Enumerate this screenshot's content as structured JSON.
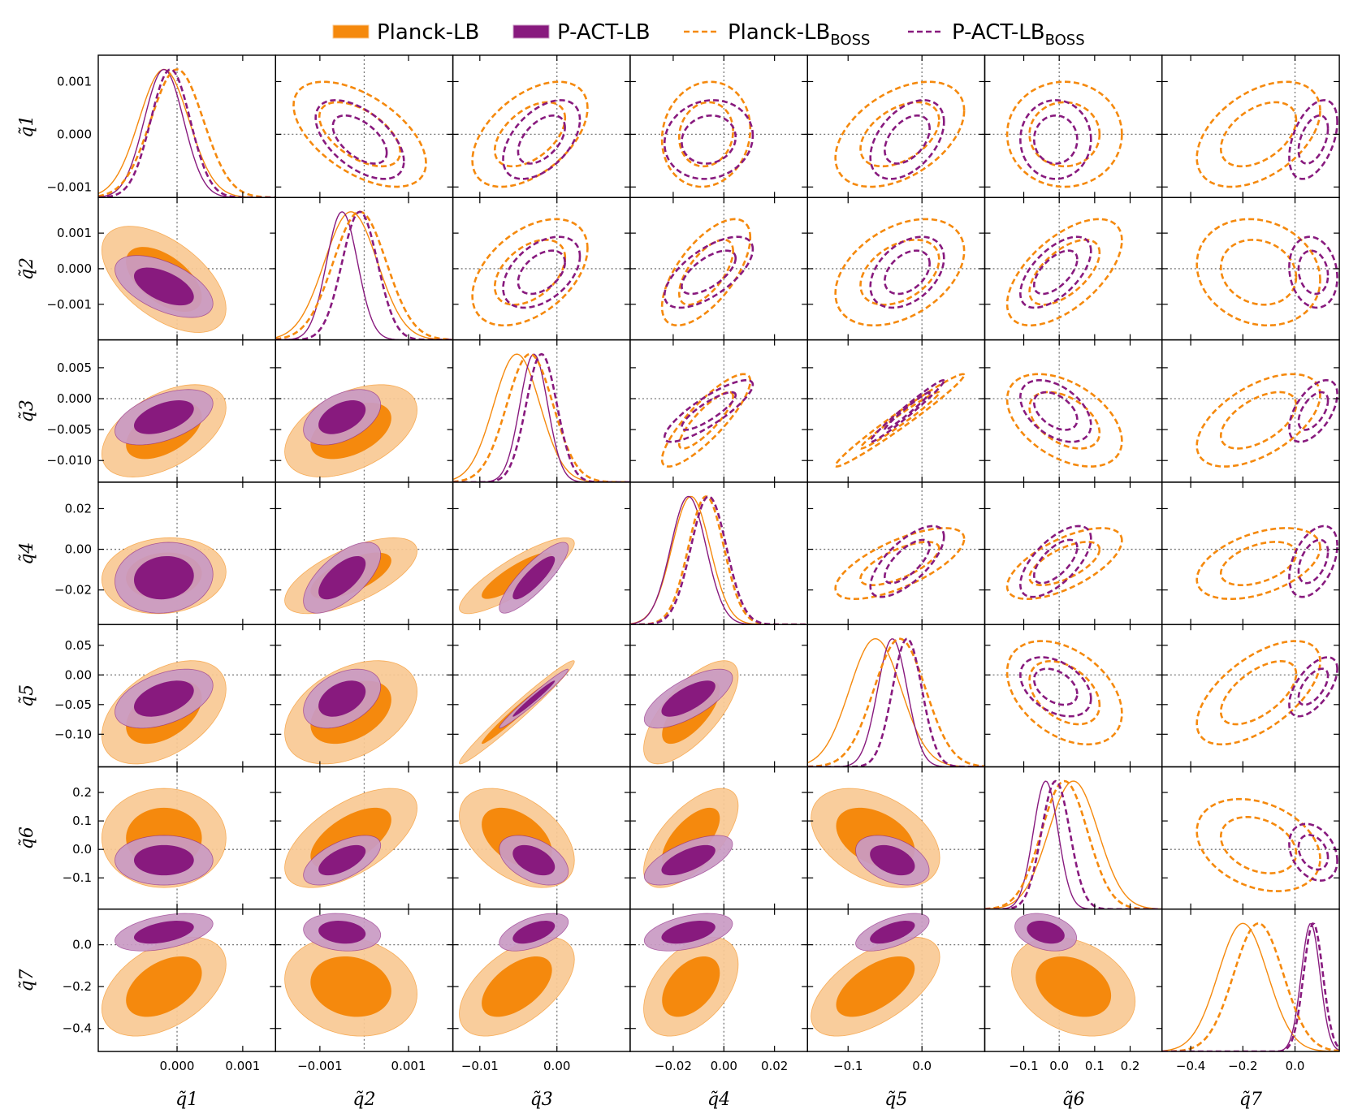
{
  "chart_data": {
    "type": "triangle-corner-plot",
    "params": [
      "q1",
      "q2",
      "q3",
      "q4",
      "q5",
      "q6",
      "q7"
    ],
    "param_labels": [
      "q̃1",
      "q̃2",
      "q̃3",
      "q̃4",
      "q̃5",
      "q̃6",
      "q̃7"
    ],
    "ranges": [
      [
        -0.0012,
        0.0015
      ],
      [
        -0.002,
        0.002
      ],
      [
        -0.0135,
        0.0095
      ],
      [
        -0.037,
        0.033
      ],
      [
        -0.155,
        0.085
      ],
      [
        -0.21,
        0.29
      ],
      [
        -0.51,
        0.17
      ]
    ],
    "y_ticks": [
      [
        {
          "v": -0.001,
          "label": "−0.001"
        },
        {
          "v": 0,
          "label": "0.000"
        },
        {
          "v": 0.001,
          "label": "0.001"
        }
      ],
      [
        {
          "v": -0.001,
          "label": "−0.001"
        },
        {
          "v": 0,
          "label": "0.000"
        },
        {
          "v": 0.001,
          "label": "0.001"
        }
      ],
      [
        {
          "v": -0.01,
          "label": "−0.010"
        },
        {
          "v": -0.005,
          "label": "−0.005"
        },
        {
          "v": 0,
          "label": "0.000"
        },
        {
          "v": 0.005,
          "label": "0.005"
        }
      ],
      [
        {
          "v": -0.02,
          "label": "−0.02"
        },
        {
          "v": 0,
          "label": "0.00"
        },
        {
          "v": 0.02,
          "label": "0.02"
        }
      ],
      [
        {
          "v": -0.1,
          "label": "−0.10"
        },
        {
          "v": -0.05,
          "label": "−0.05"
        },
        {
          "v": 0,
          "label": "0.00"
        },
        {
          "v": 0.05,
          "label": "0.05"
        }
      ],
      [
        {
          "v": -0.1,
          "label": "−0.1"
        },
        {
          "v": 0,
          "label": "0.0"
        },
        {
          "v": 0.1,
          "label": "0.1"
        },
        {
          "v": 0.2,
          "label": "0.2"
        }
      ],
      [
        {
          "v": -0.4,
          "label": "−0.4"
        },
        {
          "v": -0.2,
          "label": "−0.2"
        },
        {
          "v": 0,
          "label": "0.0"
        }
      ]
    ],
    "x_ticks": [
      [
        {
          "v": 0,
          "label": "0.000"
        },
        {
          "v": 0.001,
          "label": "0.001"
        }
      ],
      [
        {
          "v": -0.001,
          "label": "−0.001"
        },
        {
          "v": 0.001,
          "label": "0.001"
        }
      ],
      [
        {
          "v": -0.01,
          "label": "−0.01"
        },
        {
          "v": 0,
          "label": "0.00"
        }
      ],
      [
        {
          "v": -0.02,
          "label": "−0.02"
        },
        {
          "v": 0,
          "label": "0.00"
        },
        {
          "v": 0.02,
          "label": "0.02"
        }
      ],
      [
        {
          "v": -0.1,
          "label": "−0.1"
        },
        {
          "v": 0,
          "label": "0.0"
        }
      ],
      [
        {
          "v": -0.1,
          "label": "−0.1"
        },
        {
          "v": 0,
          "label": "0.0"
        },
        {
          "v": 0.1,
          "label": "0.1"
        },
        {
          "v": 0.2,
          "label": "0.2"
        }
      ],
      [
        {
          "v": -0.4,
          "label": "−0.4"
        },
        {
          "v": -0.2,
          "label": "−0.2"
        },
        {
          "v": 0,
          "label": "0.0"
        }
      ]
    ],
    "reference_lines": [
      0,
      0,
      0,
      0,
      0,
      0,
      0
    ],
    "series": [
      {
        "name": "Planck-LB",
        "base": "Planck-LB",
        "sub": "",
        "style": "filled",
        "color": "#f5890d",
        "light": "#f9c994",
        "mean": [
          -0.0002,
          -0.0003,
          -0.0052,
          -0.013,
          -0.063,
          0.04,
          -0.2
        ],
        "sd": [
          0.00038,
          0.0006,
          0.003,
          0.0075,
          0.035,
          0.07,
          0.095
        ]
      },
      {
        "name": "P-ACT-LB",
        "base": "P-ACT-LB",
        "sub": "",
        "style": "filled",
        "color": "#881a7e",
        "light": "#c99ac3",
        "mean": [
          -0.0002,
          -0.0005,
          -0.003,
          -0.014,
          -0.04,
          -0.038,
          0.06
        ],
        "sd": [
          0.0003,
          0.00035,
          0.0018,
          0.007,
          0.02,
          0.035,
          0.036
        ]
      },
      {
        "name": "Planck-LBBOSS",
        "base": "Planck-LB",
        "sub": "BOSS",
        "style": "dashed",
        "color": "#f5890d",
        "mean": [
          0.0,
          -0.0001,
          -0.0035,
          -0.007,
          -0.03,
          0.015,
          -0.14
        ],
        "sd": [
          0.0004,
          0.0006,
          0.003,
          0.007,
          0.035,
          0.065,
          0.095
        ]
      },
      {
        "name": "P-ACT-LBBOSS",
        "base": "P-ACT-LB",
        "sub": "BOSS",
        "style": "dashed",
        "color": "#881a7e",
        "mean": [
          -0.0001,
          -0.0001,
          -0.002,
          -0.006,
          -0.02,
          -0.01,
          0.07
        ],
        "sd": [
          0.0003,
          0.0004,
          0.002,
          0.007,
          0.02,
          0.04,
          0.037
        ]
      }
    ],
    "correlations": [
      [
        -0.55,
        0.5,
        0.1,
        0.45,
        0.0,
        0.45
      ],
      [
        0.45,
        0.65,
        0.4,
        0.6,
        -0.15
      ],
      [
        0.85,
        0.98,
        -0.45,
        0.55
      ],
      [
        0.7,
        0.65,
        0.45
      ],
      [
        -0.4,
        0.6
      ],
      [
        -0.3
      ]
    ],
    "legend_position": "top-center"
  }
}
